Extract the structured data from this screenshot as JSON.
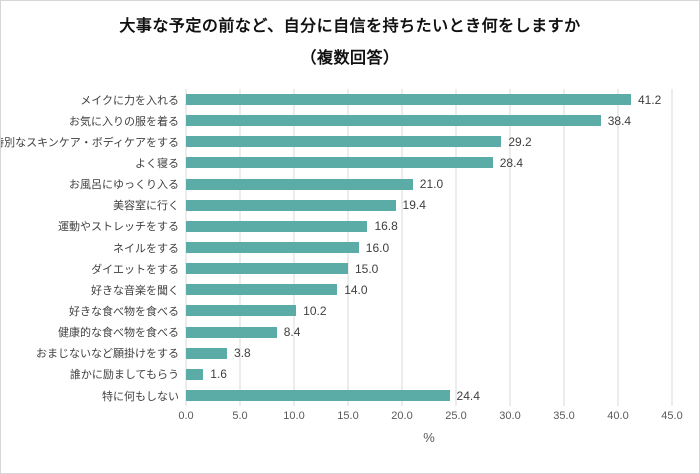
{
  "title_line1": "大事な予定の前など、自分に自信を持ちたいとき何をしますか",
  "title_line2": "（複数回答）",
  "chart_data": {
    "type": "bar",
    "orientation": "horizontal",
    "title": "大事な予定の前など、自分に自信を持ちたいとき何をしますか（複数回答）",
    "categories": [
      "メイクに力を入れる",
      "お気に入りの服を着る",
      "特別なスキンケア・ボディケアをする",
      "よく寝る",
      "お風呂にゆっくり入る",
      "美容室に行く",
      "運動やストレッチをする",
      "ネイルをする",
      "ダイエットをする",
      "好きな音楽を聞く",
      "好きな食べ物を食べる",
      "健康的な食べ物を食べる",
      "おまじないなど願掛けをする",
      "誰かに励ましてもらう",
      "特に何もしない"
    ],
    "values": [
      41.2,
      38.4,
      29.2,
      28.4,
      21.0,
      19.4,
      16.8,
      16.0,
      15.0,
      14.0,
      10.2,
      8.4,
      3.8,
      1.6,
      24.4
    ],
    "xlabel": "%",
    "ylabel": "",
    "xlim": [
      0,
      45
    ],
    "xticks": [
      "0.0",
      "5.0",
      "10.0",
      "15.0",
      "20.0",
      "25.0",
      "30.0",
      "35.0",
      "40.0",
      "45.0"
    ],
    "grid": true,
    "legend_position": "none",
    "bar_color": "#5baca6",
    "gridline_color": "#d9d9d9",
    "value_label_color": "#404040",
    "tick_label_color": "#595959"
  }
}
